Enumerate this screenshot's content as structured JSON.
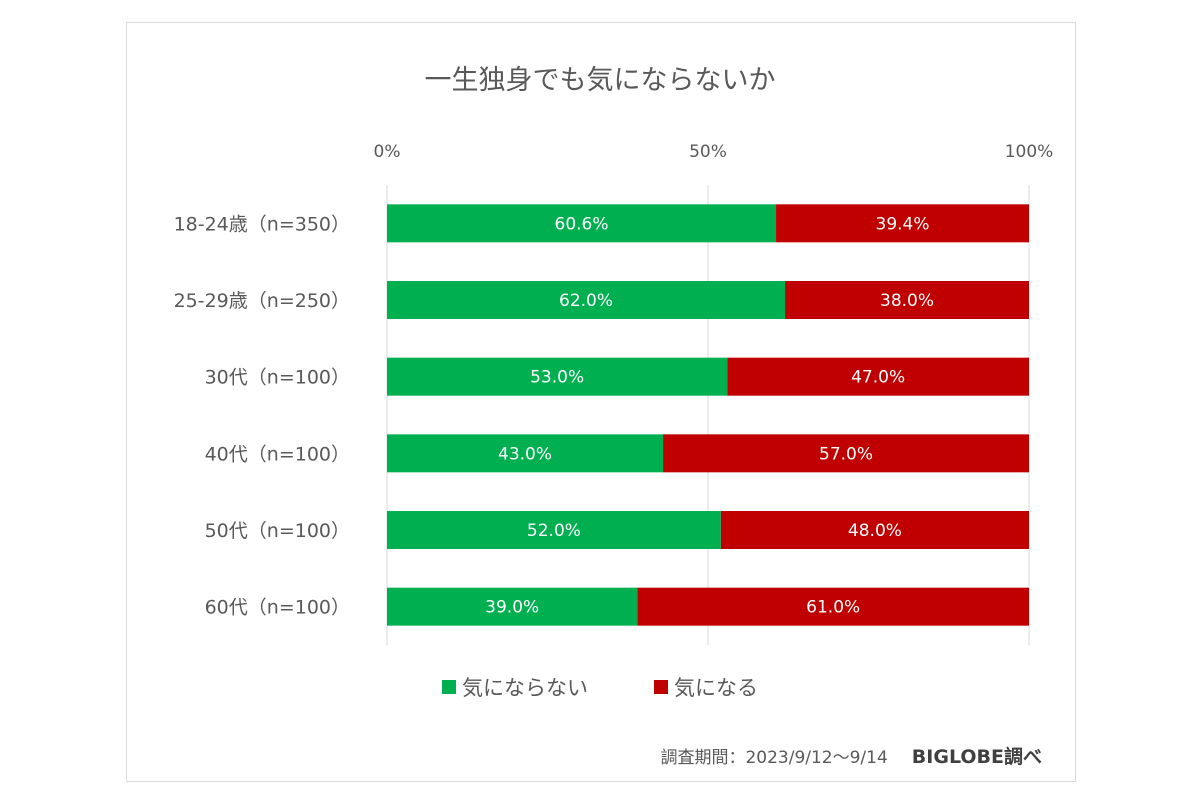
{
  "chart_data": {
    "type": "bar",
    "orientation": "horizontal",
    "stacked": true,
    "title": "一生独身でも気にならないか",
    "categories": [
      "18-24歳（n=350）",
      "25-29歳（n=250）",
      "30代（n=100）",
      "40代（n=100）",
      "50代（n=100）",
      "60代（n=100）"
    ],
    "series": [
      {
        "name": "気にならない",
        "color": "#00b050",
        "values": [
          60.6,
          62.0,
          53.0,
          43.0,
          52.0,
          39.0
        ],
        "labels": [
          "60.6%",
          "62.0%",
          "53.0%",
          "43.0%",
          "52.0%",
          "39.0%"
        ]
      },
      {
        "name": "気になる",
        "color": "#c00000",
        "values": [
          39.4,
          38.0,
          47.0,
          57.0,
          48.0,
          61.0
        ],
        "labels": [
          "39.4%",
          "38.0%",
          "47.0%",
          "57.0%",
          "48.0%",
          "61.0%"
        ]
      }
    ],
    "xlim": [
      0,
      100
    ],
    "xticks": [
      "0%",
      "50%",
      "100%"
    ],
    "xtick_values": [
      0,
      50,
      100
    ],
    "xaxis_position": "top",
    "grid": true,
    "legend_position": "bottom"
  },
  "footer": {
    "period": "調査期間：2023/9/12～9/14",
    "source": "BIGLOBE調べ"
  }
}
